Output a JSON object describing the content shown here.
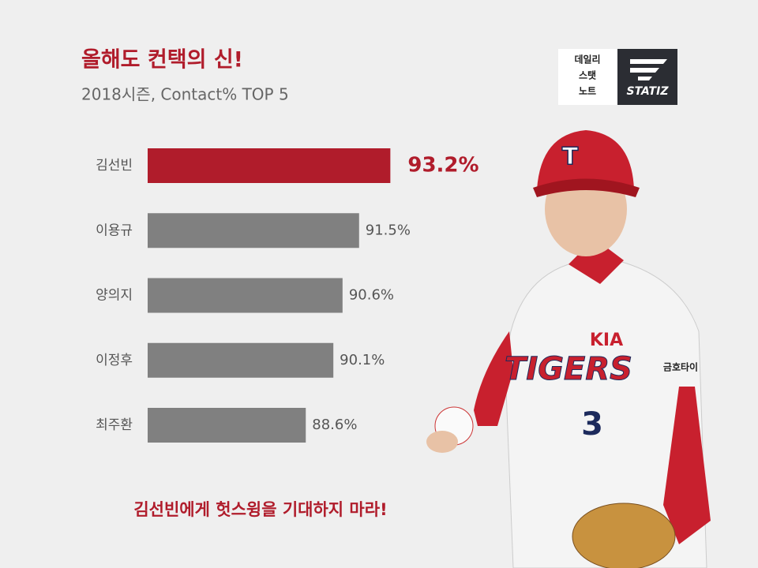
{
  "chart_data": {
    "type": "bar",
    "orientation": "horizontal",
    "title": "올해도 컨택의 신!",
    "subtitle": "2018시즌, Contact% TOP 5",
    "categories": [
      "김선빈",
      "이용규",
      "양의지",
      "이정후",
      "최주환"
    ],
    "values": [
      93.2,
      91.5,
      90.6,
      90.1,
      88.6
    ],
    "value_labels": [
      "93.2%",
      "91.5%",
      "90.6%",
      "90.1%",
      "88.6%"
    ],
    "colors": [
      "#b01c2b",
      "#808080",
      "#808080",
      "#808080",
      "#808080"
    ],
    "xlim": [
      80,
      94
    ],
    "annotation": "김선빈에게 헛스윙을 기대하지 마라!"
  },
  "logo": {
    "lines": [
      "데일리",
      "스탯",
      "노트"
    ],
    "brand": "STATIZ"
  },
  "jersey": {
    "brand": "KIA",
    "team": "TIGERS",
    "number": "3",
    "sponsor": "금호타이",
    "cap": "T"
  }
}
